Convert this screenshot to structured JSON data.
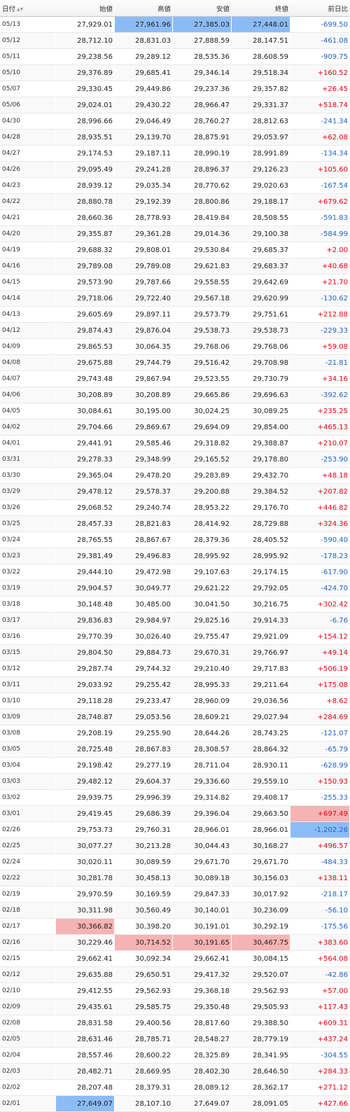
{
  "table": {
    "headers": {
      "date": "日付",
      "open": "始値",
      "high": "高値",
      "low": "安値",
      "close": "終値",
      "change": "前日比"
    },
    "sort_icon": "sort-arrows-icon",
    "colors": {
      "up": "#e60012",
      "down": "#1e63c6",
      "highlight_blue": "#8cbcf6",
      "highlight_red": "#f6b3b3"
    },
    "rows": [
      {
        "date": "05/13",
        "open": "27,929.01",
        "high": "27,961.96",
        "low": "27,385.03",
        "close": "27,448.01",
        "change": "-699.50",
        "hl": {
          "high": "blue",
          "low": "blue",
          "close": "blue"
        }
      },
      {
        "date": "05/12",
        "open": "28,712.10",
        "high": "28,831.03",
        "low": "27,888.59",
        "close": "28,147.51",
        "change": "-461.08"
      },
      {
        "date": "05/11",
        "open": "29,238.56",
        "high": "29,289.12",
        "low": "28,535.36",
        "close": "28,608.59",
        "change": "-909.75"
      },
      {
        "date": "05/10",
        "open": "29,376.89",
        "high": "29,685.41",
        "low": "29,346.14",
        "close": "29,518.34",
        "change": "+160.52"
      },
      {
        "date": "05/07",
        "open": "29,330.45",
        "high": "29,449.86",
        "low": "29,237.36",
        "close": "29,357.82",
        "change": "+26.45"
      },
      {
        "date": "05/06",
        "open": "29,024.01",
        "high": "29,430.22",
        "low": "28,966.47",
        "close": "29,331.37",
        "change": "+518.74"
      },
      {
        "date": "04/30",
        "open": "28,996.66",
        "high": "29,046.49",
        "low": "28,760.27",
        "close": "28,812.63",
        "change": "-241.34"
      },
      {
        "date": "04/28",
        "open": "28,935.51",
        "high": "29,139.70",
        "low": "28,875.91",
        "close": "29,053.97",
        "change": "+62.08"
      },
      {
        "date": "04/27",
        "open": "29,174.53",
        "high": "29,187.11",
        "low": "28,990.19",
        "close": "28,991.89",
        "change": "-134.34"
      },
      {
        "date": "04/26",
        "open": "29,095.49",
        "high": "29,241.28",
        "low": "28,896.37",
        "close": "29,126.23",
        "change": "+105.60"
      },
      {
        "date": "04/23",
        "open": "28,939.12",
        "high": "29,035.34",
        "low": "28,770.62",
        "close": "29,020.63",
        "change": "-167.54"
      },
      {
        "date": "04/22",
        "open": "28,880.78",
        "high": "29,192.39",
        "low": "28,800.86",
        "close": "29,188.17",
        "change": "+679.62"
      },
      {
        "date": "04/21",
        "open": "28,660.36",
        "high": "28,778.93",
        "low": "28,419.84",
        "close": "28,508.55",
        "change": "-591.83"
      },
      {
        "date": "04/20",
        "open": "29,355.87",
        "high": "29,361.28",
        "low": "29,014.36",
        "close": "29,100.38",
        "change": "-584.99"
      },
      {
        "date": "04/19",
        "open": "29,688.32",
        "high": "29,808.01",
        "low": "29,530.84",
        "close": "29,685.37",
        "change": "+2.00"
      },
      {
        "date": "04/16",
        "open": "29,789.08",
        "high": "29,789.08",
        "low": "29,621.83",
        "close": "29,683.37",
        "change": "+40.68"
      },
      {
        "date": "04/15",
        "open": "29,573.90",
        "high": "29,787.66",
        "low": "29,558.55",
        "close": "29,642.69",
        "change": "+21.70"
      },
      {
        "date": "04/14",
        "open": "29,718.06",
        "high": "29,722.40",
        "low": "29,567.18",
        "close": "29,620.99",
        "change": "-130.62"
      },
      {
        "date": "04/13",
        "open": "29,605.69",
        "high": "29,897.11",
        "low": "29,573.79",
        "close": "29,751.61",
        "change": "+212.88"
      },
      {
        "date": "04/12",
        "open": "29,874.43",
        "high": "29,876.04",
        "low": "29,538.73",
        "close": "29,538.73",
        "change": "-229.33"
      },
      {
        "date": "04/09",
        "open": "29,865.53",
        "high": "30,064.35",
        "low": "29,768.06",
        "close": "29,768.06",
        "change": "+59.08"
      },
      {
        "date": "04/08",
        "open": "29,675.88",
        "high": "29,744.79",
        "low": "29,516.42",
        "close": "29,708.98",
        "change": "-21.81"
      },
      {
        "date": "04/07",
        "open": "29,743.48",
        "high": "29,867.94",
        "low": "29,523.55",
        "close": "29,730.79",
        "change": "+34.16"
      },
      {
        "date": "04/06",
        "open": "30,208.89",
        "high": "30,208.89",
        "low": "29,665.86",
        "close": "29,696.63",
        "change": "-392.62"
      },
      {
        "date": "04/05",
        "open": "30,084.61",
        "high": "30,195.00",
        "low": "30,024.25",
        "close": "30,089.25",
        "change": "+235.25"
      },
      {
        "date": "04/02",
        "open": "29,704.66",
        "high": "29,869.67",
        "low": "29,694.09",
        "close": "29,854.00",
        "change": "+465.13"
      },
      {
        "date": "04/01",
        "open": "29,441.91",
        "high": "29,585.46",
        "low": "29,318.82",
        "close": "29,388.87",
        "change": "+210.07"
      },
      {
        "date": "03/31",
        "open": "29,278.33",
        "high": "29,348.99",
        "low": "29,165.52",
        "close": "29,178.80",
        "change": "-253.90"
      },
      {
        "date": "03/30",
        "open": "29,365.04",
        "high": "29,478.20",
        "low": "29,283.89",
        "close": "29,432.70",
        "change": "+48.18"
      },
      {
        "date": "03/29",
        "open": "29,478.12",
        "high": "29,578.37",
        "low": "29,200.88",
        "close": "29,384.52",
        "change": "+207.82"
      },
      {
        "date": "03/26",
        "open": "29,068.52",
        "high": "29,240.74",
        "low": "28,953.22",
        "close": "29,176.70",
        "change": "+446.82"
      },
      {
        "date": "03/25",
        "open": "28,457.33",
        "high": "28,821.83",
        "low": "28,414.92",
        "close": "28,729.88",
        "change": "+324.36"
      },
      {
        "date": "03/24",
        "open": "28,765.55",
        "high": "28,867.67",
        "low": "28,379.36",
        "close": "28,405.52",
        "change": "-590.40"
      },
      {
        "date": "03/23",
        "open": "29,381.49",
        "high": "29,496.83",
        "low": "28,995.92",
        "close": "28,995.92",
        "change": "-178.23"
      },
      {
        "date": "03/22",
        "open": "29,444.10",
        "high": "29,472.98",
        "low": "29,107.63",
        "close": "29,174.15",
        "change": "-617.90"
      },
      {
        "date": "03/19",
        "open": "29,904.57",
        "high": "30,049.77",
        "low": "29,621.22",
        "close": "29,792.05",
        "change": "-424.70"
      },
      {
        "date": "03/18",
        "open": "30,148.48",
        "high": "30,485.00",
        "low": "30,041.50",
        "close": "30,216.75",
        "change": "+302.42"
      },
      {
        "date": "03/17",
        "open": "29,836.83",
        "high": "29,984.97",
        "low": "29,825.16",
        "close": "29,914.33",
        "change": "-6.76"
      },
      {
        "date": "03/16",
        "open": "29,770.39",
        "high": "30,026.40",
        "low": "29,755.47",
        "close": "29,921.09",
        "change": "+154.12"
      },
      {
        "date": "03/15",
        "open": "29,804.50",
        "high": "29,884.73",
        "low": "29,670.31",
        "close": "29,766.97",
        "change": "+49.14"
      },
      {
        "date": "03/12",
        "open": "29,287.74",
        "high": "29,744.32",
        "low": "29,210.40",
        "close": "29,717.83",
        "change": "+506.19"
      },
      {
        "date": "03/11",
        "open": "29,033.92",
        "high": "29,255.42",
        "low": "28,995.33",
        "close": "29,211.64",
        "change": "+175.08"
      },
      {
        "date": "03/10",
        "open": "29,118.28",
        "high": "29,233.47",
        "low": "28,960.09",
        "close": "29,036.56",
        "change": "+8.62"
      },
      {
        "date": "03/09",
        "open": "28,748.87",
        "high": "29,053.56",
        "low": "28,609.21",
        "close": "29,027.94",
        "change": "+284.69"
      },
      {
        "date": "03/08",
        "open": "29,208.19",
        "high": "29,255.90",
        "low": "28,644.26",
        "close": "28,743.25",
        "change": "-121.07"
      },
      {
        "date": "03/05",
        "open": "28,725.48",
        "high": "28,867.83",
        "low": "28,308.57",
        "close": "28,864.32",
        "change": "-65.79"
      },
      {
        "date": "03/04",
        "open": "29,198.42",
        "high": "29,277.19",
        "low": "28,711.04",
        "close": "28,930.11",
        "change": "-628.99"
      },
      {
        "date": "03/03",
        "open": "29,482.12",
        "high": "29,604.37",
        "low": "29,336.60",
        "close": "29,559.10",
        "change": "+150.93"
      },
      {
        "date": "03/02",
        "open": "29,939.75",
        "high": "29,996.39",
        "low": "29,314.82",
        "close": "29,408.17",
        "change": "-255.33"
      },
      {
        "date": "03/01",
        "open": "29,419.45",
        "high": "29,686.39",
        "low": "29,396.04",
        "close": "29,663.50",
        "change": "+697.49",
        "hl": {
          "change": "red"
        }
      },
      {
        "date": "02/26",
        "open": "29,753.73",
        "high": "29,760.31",
        "low": "28,966.01",
        "close": "28,966.01",
        "change": "-1,202.26",
        "hl": {
          "change": "blue"
        }
      },
      {
        "date": "02/25",
        "open": "30,077.27",
        "high": "30,213.28",
        "low": "30,044.43",
        "close": "30,168.27",
        "change": "+496.57"
      },
      {
        "date": "02/24",
        "open": "30,020.11",
        "high": "30,089.59",
        "low": "29,671.70",
        "close": "29,671.70",
        "change": "-484.33"
      },
      {
        "date": "02/22",
        "open": "30,281.78",
        "high": "30,458.13",
        "low": "30,089.18",
        "close": "30,156.03",
        "change": "+138.11"
      },
      {
        "date": "02/19",
        "open": "29,970.59",
        "high": "30,169.59",
        "low": "29,847.33",
        "close": "30,017.92",
        "change": "-218.17"
      },
      {
        "date": "02/18",
        "open": "30,311.98",
        "high": "30,560.49",
        "low": "30,140.01",
        "close": "30,236.09",
        "change": "-56.10"
      },
      {
        "date": "02/17",
        "open": "30,366.82",
        "high": "30,398.20",
        "low": "30,191.01",
        "close": "30,292.19",
        "change": "-175.56",
        "hl": {
          "open": "red"
        }
      },
      {
        "date": "02/16",
        "open": "30,229.46",
        "high": "30,714.52",
        "low": "30,191.65",
        "close": "30,467.75",
        "change": "+383.60",
        "hl": {
          "high": "red",
          "low": "red",
          "close": "red"
        }
      },
      {
        "date": "02/15",
        "open": "29,662.41",
        "high": "30,092.34",
        "low": "29,662.41",
        "close": "30,084.15",
        "change": "+564.08"
      },
      {
        "date": "02/12",
        "open": "29,635.88",
        "high": "29,650.51",
        "low": "29,417.32",
        "close": "29,520.07",
        "change": "-42.86"
      },
      {
        "date": "02/10",
        "open": "29,412.55",
        "high": "29,562.93",
        "low": "29,368.18",
        "close": "29,562.93",
        "change": "+57.00"
      },
      {
        "date": "02/09",
        "open": "29,435.61",
        "high": "29,585.75",
        "low": "29,350.48",
        "close": "29,505.93",
        "change": "+117.43"
      },
      {
        "date": "02/08",
        "open": "28,831.58",
        "high": "29,400.56",
        "low": "28,817.60",
        "close": "29,388.50",
        "change": "+609.31"
      },
      {
        "date": "02/05",
        "open": "28,631.46",
        "high": "28,785.71",
        "low": "28,548.27",
        "close": "28,779.19",
        "change": "+437.24"
      },
      {
        "date": "02/04",
        "open": "28,557.46",
        "high": "28,600.22",
        "low": "28,325.89",
        "close": "28,341.95",
        "change": "-304.55"
      },
      {
        "date": "02/03",
        "open": "28,482.71",
        "high": "28,669.95",
        "low": "28,402.30",
        "close": "28,646.50",
        "change": "+284.33"
      },
      {
        "date": "02/02",
        "open": "28,207.48",
        "high": "28,379.31",
        "low": "28,089.12",
        "close": "28,362.17",
        "change": "+271.12"
      },
      {
        "date": "02/01",
        "open": "27,649.07",
        "high": "28,107.10",
        "low": "27,649.07",
        "close": "28,091.05",
        "change": "+427.66",
        "hl": {
          "open": "blue"
        }
      }
    ]
  }
}
